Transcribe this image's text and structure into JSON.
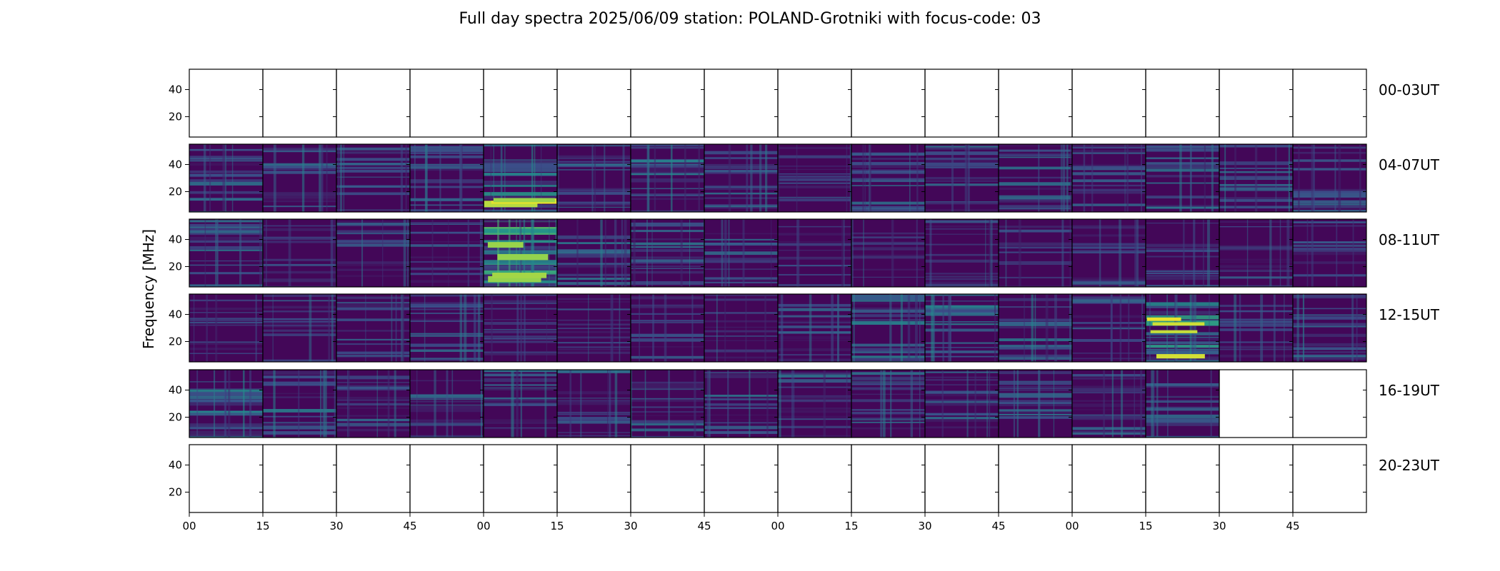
{
  "chart_data": {
    "type": "heatmap",
    "title": "Full day spectra 2025/06/09 station: POLAND-Grotniki with focus-code: 03",
    "ylabel": "Frequency [MHz]",
    "xlabel": "",
    "colormap": "viridis",
    "ylim": [
      5,
      55
    ],
    "y_ticks": [
      "20",
      "40"
    ],
    "x_ticks": [
      "00",
      "15",
      "30",
      "45",
      "00",
      "15",
      "30",
      "45",
      "00",
      "15",
      "30",
      "45",
      "00",
      "15",
      "30",
      "45"
    ],
    "panels_per_row": 16,
    "rows": [
      {
        "label": "00-03UT",
        "active": [
          0,
          0,
          0,
          0,
          0,
          0,
          0,
          0,
          0,
          0,
          0,
          0,
          0,
          0,
          0,
          0
        ],
        "intensity": [
          0,
          0,
          0,
          0,
          0,
          0,
          0,
          0,
          0,
          0,
          0,
          0,
          0,
          0,
          0,
          0
        ]
      },
      {
        "label": "04-07UT",
        "active": [
          1,
          1,
          1,
          1,
          1,
          1,
          1,
          1,
          1,
          1,
          1,
          1,
          1,
          1,
          1,
          1
        ],
        "intensity": [
          0.35,
          0.35,
          0.3,
          0.45,
          0.6,
          0.35,
          0.45,
          0.4,
          0.25,
          0.4,
          0.35,
          0.35,
          0.3,
          0.35,
          0.35,
          0.4
        ]
      },
      {
        "label": "08-11UT",
        "active": [
          1,
          1,
          1,
          1,
          1,
          1,
          1,
          1,
          1,
          1,
          1,
          1,
          1,
          1,
          1,
          1
        ],
        "intensity": [
          0.4,
          0.2,
          0.25,
          0.3,
          0.95,
          0.4,
          0.45,
          0.3,
          0.15,
          0.15,
          0.2,
          0.15,
          0.2,
          0.2,
          0.2,
          0.2
        ]
      },
      {
        "label": "12-15UT",
        "active": [
          1,
          1,
          1,
          1,
          1,
          1,
          1,
          1,
          1,
          1,
          1,
          1,
          1,
          1,
          1,
          1
        ],
        "intensity": [
          0.2,
          0.2,
          0.3,
          0.3,
          0.25,
          0.2,
          0.25,
          0.2,
          0.3,
          0.45,
          0.45,
          0.4,
          0.25,
          0.7,
          0.25,
          0.35
        ]
      },
      {
        "label": "16-19UT",
        "active": [
          1,
          1,
          1,
          1,
          1,
          1,
          1,
          1,
          1,
          1,
          1,
          1,
          1,
          1,
          0,
          0
        ],
        "intensity": [
          0.5,
          0.4,
          0.35,
          0.35,
          0.35,
          0.35,
          0.35,
          0.35,
          0.35,
          0.35,
          0.35,
          0.35,
          0.35,
          0.35,
          0,
          0
        ]
      },
      {
        "label": "20-23UT",
        "active": [
          0,
          0,
          0,
          0,
          0,
          0,
          0,
          0,
          0,
          0,
          0,
          0,
          0,
          0,
          0,
          0
        ],
        "intensity": [
          0,
          0,
          0,
          0,
          0,
          0,
          0,
          0,
          0,
          0,
          0,
          0,
          0,
          0,
          0,
          0
        ]
      }
    ]
  }
}
